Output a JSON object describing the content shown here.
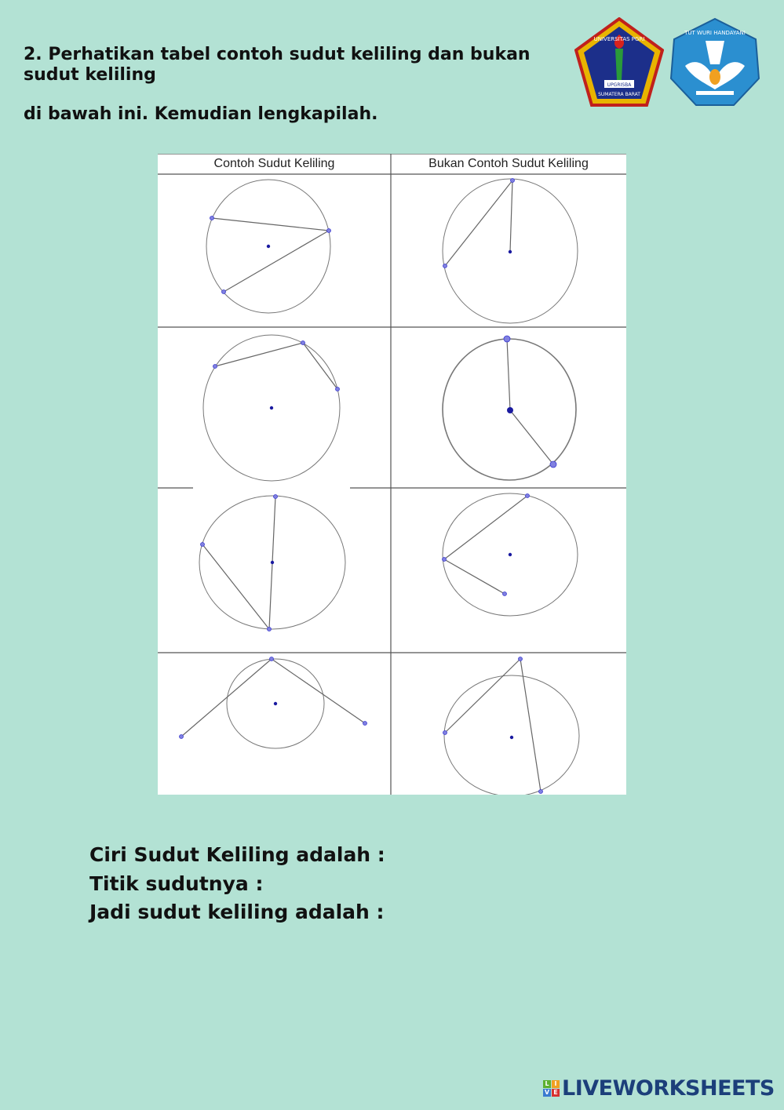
{
  "question": {
    "line1": "2. Perhatikan tabel contoh sudut keliling dan bukan",
    "line2": "sudut keliling",
    "line3": "di bawah ini. Kemudian lengkapilah."
  },
  "logos": {
    "left": "UNIVERSITAS PGRI UPGRISBA SUMATERA BARAT",
    "right": "TUT WURI HANDAYANI"
  },
  "table": {
    "headers": [
      "Contoh Sudut Keliling",
      "Bukan Contoh Sudut Keliling"
    ]
  },
  "answers": {
    "ciri": "Ciri Sudut Keliling adalah :",
    "titik": "Titik sudutnya :",
    "jadi": "Jadi sudut keliling adalah :"
  },
  "brand": {
    "text": "LIVEWORKSHEETS",
    "blocks": [
      "L",
      "I",
      "V",
      "E"
    ]
  },
  "colors": {
    "background": "#b3e2d4",
    "brand": "#1c3f7a",
    "points": "#3a3ad0"
  }
}
